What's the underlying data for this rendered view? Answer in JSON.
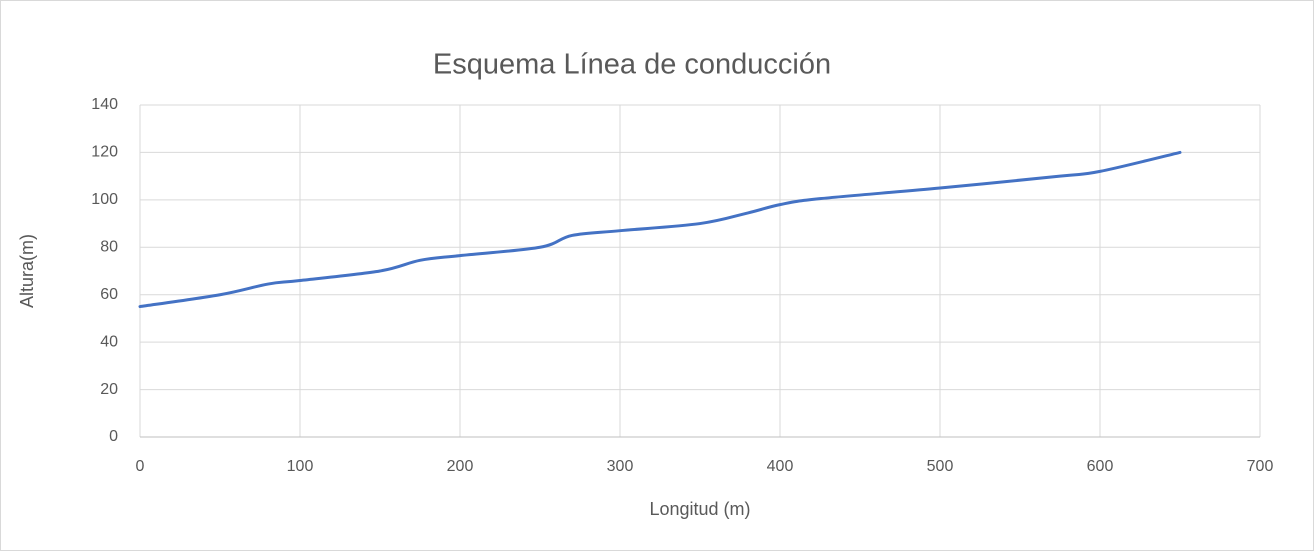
{
  "chart_data": {
    "type": "line",
    "title": "Esquema Línea de conducción",
    "x_label": "Longitud (m)",
    "y_label": "Altura(m)",
    "series": [
      {
        "name": "Altura",
        "color": "#4472c4",
        "x": [
          0,
          50,
          80,
          100,
          150,
          175,
          200,
          250,
          270,
          300,
          350,
          380,
          400,
          425,
          500,
          575,
          600,
          650
        ],
        "values": [
          55,
          60,
          64.5,
          66,
          70,
          74.5,
          76.5,
          80,
          85,
          87,
          90,
          94.5,
          98,
          100.5,
          105,
          110,
          112,
          120
        ]
      }
    ],
    "xlim": [
      0,
      700
    ],
    "xticks": [
      0,
      100,
      200,
      300,
      400,
      500,
      600,
      700
    ],
    "ylim": [
      0,
      140
    ],
    "yticks": [
      0,
      20,
      40,
      60,
      80,
      100,
      120,
      140
    ],
    "grid": true
  }
}
